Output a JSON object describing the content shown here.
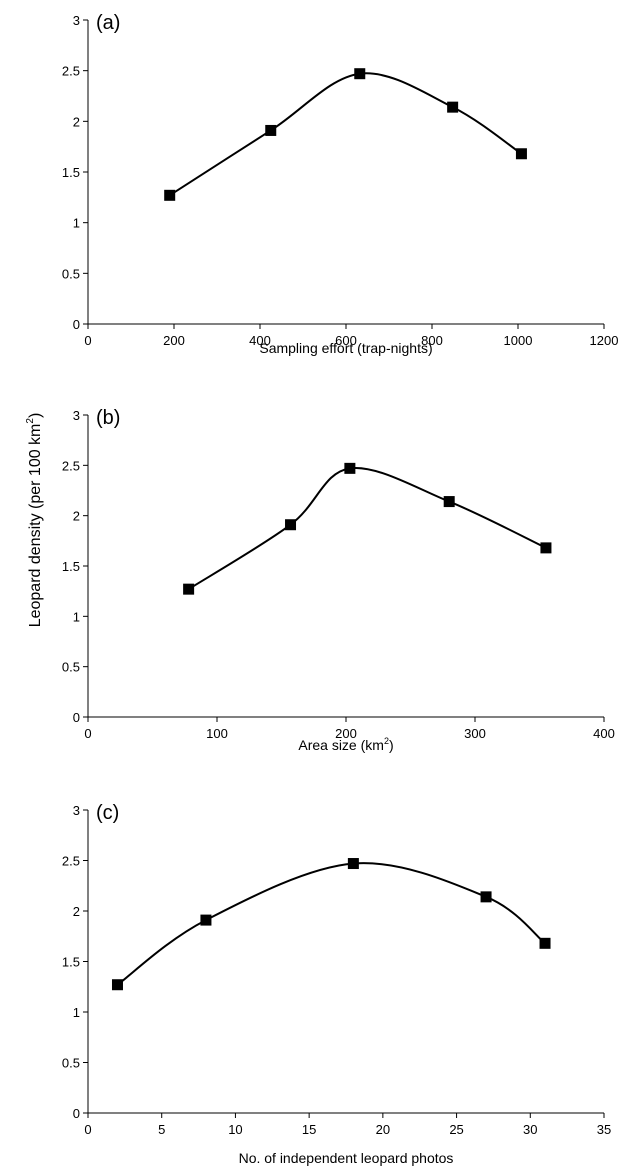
{
  "figure": {
    "shared_ylabel": "Leopard density (per 100 km",
    "shared_ylabel_sup": "2",
    "shared_ylabel_tail": ")"
  },
  "chart_data": [
    {
      "type": "line",
      "panel_label": "(a)",
      "xlabel": "Sampling effort (trap-nights)",
      "xlabel_sup": "",
      "xlabel_tail": "",
      "ylabel": "",
      "xlim": [
        0,
        1200
      ],
      "ylim": [
        0,
        3
      ],
      "xticks": [
        "0",
        "200",
        "400",
        "600",
        "800",
        "1000",
        "1200"
      ],
      "yticks": [
        "0",
        "0.5",
        "1",
        "1.5",
        "2",
        "2.5",
        "3"
      ],
      "grid": false,
      "marker": "square",
      "smoothed": true,
      "x": [
        190,
        425,
        632,
        848,
        1008
      ],
      "y": [
        1.27,
        1.91,
        2.47,
        2.14,
        1.68
      ]
    },
    {
      "type": "line",
      "panel_label": "(b)",
      "xlabel": "Area size (km",
      "xlabel_sup": "2",
      "xlabel_tail": ")",
      "ylabel": "Leopard density (per 100 km2)",
      "xlim": [
        0,
        400
      ],
      "ylim": [
        0,
        3
      ],
      "xticks": [
        "0",
        "100",
        "200",
        "300",
        "400"
      ],
      "yticks": [
        "0",
        "0.5",
        "1",
        "1.5",
        "2",
        "2.5",
        "3"
      ],
      "grid": false,
      "marker": "square",
      "smoothed": true,
      "x": [
        78,
        157,
        203,
        280,
        355
      ],
      "y": [
        1.27,
        1.91,
        2.47,
        2.14,
        1.68
      ]
    },
    {
      "type": "line",
      "panel_label": "(c)",
      "xlabel": "No. of independent leopard photos",
      "xlabel_sup": "",
      "xlabel_tail": "",
      "ylabel": "",
      "xlim": [
        0,
        35
      ],
      "ylim": [
        0,
        3
      ],
      "xticks": [
        "0",
        "5",
        "10",
        "15",
        "20",
        "25",
        "30",
        "35"
      ],
      "yticks": [
        "0",
        "0.5",
        "1",
        "1.5",
        "2",
        "2.5",
        "3"
      ],
      "grid": false,
      "marker": "square",
      "smoothed": true,
      "x": [
        2,
        8,
        18,
        27,
        31
      ],
      "y": [
        1.27,
        1.91,
        2.47,
        2.14,
        1.68
      ]
    }
  ]
}
